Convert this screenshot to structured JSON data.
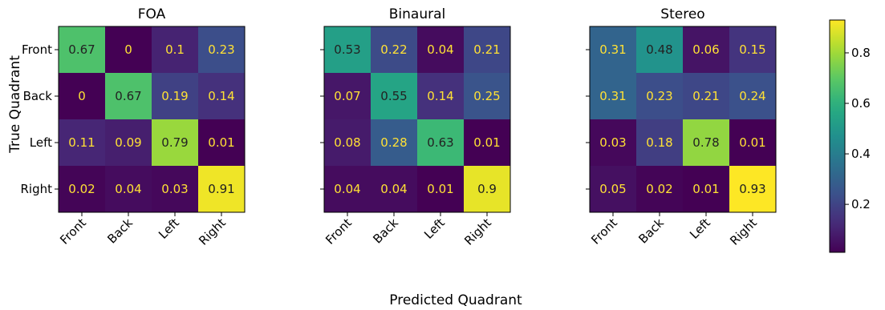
{
  "chart_data": {
    "type": "heatmap",
    "xlabel": "Predicted Quadrant",
    "ylabel": "True Quadrant",
    "categories": [
      "Front",
      "Back",
      "Left",
      "Right"
    ],
    "colormap": "viridis",
    "color_range": [
      0.01,
      0.93
    ],
    "colorbar": {
      "ticks": [
        0.2,
        0.4,
        0.6,
        0.8
      ],
      "tick_labels": [
        "0.2",
        "0.4",
        "0.6",
        "0.8"
      ],
      "placement": "right"
    },
    "text_colors": {
      "dark_cell": "#ffe135",
      "light_cell": "#222222"
    },
    "panels": [
      {
        "title": "FOA",
        "matrix": [
          [
            0.67,
            0,
            0.1,
            0.23
          ],
          [
            0,
            0.67,
            0.19,
            0.14
          ],
          [
            0.11,
            0.09,
            0.79,
            0.01
          ],
          [
            0.02,
            0.04,
            0.03,
            0.91
          ]
        ],
        "labels": [
          [
            "0.67",
            "0",
            "0.1",
            "0.23"
          ],
          [
            "0",
            "0.67",
            "0.19",
            "0.14"
          ],
          [
            "0.11",
            "0.09",
            "0.79",
            "0.01"
          ],
          [
            "0.02",
            "0.04",
            "0.03",
            "0.91"
          ]
        ]
      },
      {
        "title": "Binaural",
        "matrix": [
          [
            0.53,
            0.22,
            0.04,
            0.21
          ],
          [
            0.07,
            0.55,
            0.14,
            0.25
          ],
          [
            0.08,
            0.28,
            0.63,
            0.01
          ],
          [
            0.04,
            0.04,
            0.01,
            0.9
          ]
        ],
        "labels": [
          [
            "0.53",
            "0.22",
            "0.04",
            "0.21"
          ],
          [
            "0.07",
            "0.55",
            "0.14",
            "0.25"
          ],
          [
            "0.08",
            "0.28",
            "0.63",
            "0.01"
          ],
          [
            "0.04",
            "0.04",
            "0.01",
            "0.9"
          ]
        ]
      },
      {
        "title": "Stereo",
        "matrix": [
          [
            0.31,
            0.48,
            0.06,
            0.15
          ],
          [
            0.31,
            0.23,
            0.21,
            0.24
          ],
          [
            0.03,
            0.18,
            0.78,
            0.01
          ],
          [
            0.05,
            0.02,
            0.01,
            0.93
          ]
        ],
        "labels": [
          [
            "0.31",
            "0.48",
            "0.06",
            "0.15"
          ],
          [
            "0.31",
            "0.23",
            "0.21",
            "0.24"
          ],
          [
            "0.03",
            "0.18",
            "0.78",
            "0.01"
          ],
          [
            "0.05",
            "0.02",
            "0.01",
            "0.93"
          ]
        ]
      }
    ]
  }
}
